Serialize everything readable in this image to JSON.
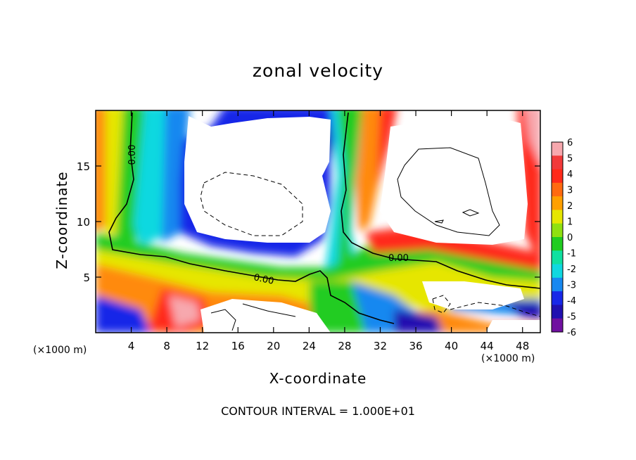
{
  "chart_data": {
    "type": "heatmap",
    "title": "zonal velocity",
    "xlabel": "X-coordinate",
    "ylabel": "Z-coordinate",
    "x_unit": "(×1000 m)",
    "footer": "CONTOUR INTERVAL = 1.000E+01",
    "xlim": [
      0,
      50
    ],
    "ylim": [
      0,
      20
    ],
    "x_ticks": [
      4,
      8,
      12,
      16,
      20,
      24,
      28,
      32,
      36,
      40,
      44,
      48
    ],
    "y_ticks": [
      5,
      10,
      15
    ],
    "colorbar": {
      "levels": [
        6,
        5,
        4,
        3,
        2,
        1,
        0,
        -1,
        -2,
        -3,
        -4,
        -5,
        -6
      ],
      "colors": [
        "#f7a8ae",
        "#f23a3a",
        "#ff2a1a",
        "#ff6a10",
        "#ffa000",
        "#e6e600",
        "#90e010",
        "#20cc20",
        "#10e0a0",
        "#10d8e0",
        "#1888f0",
        "#1828e8",
        "#2010b0",
        "#7010a0"
      ]
    },
    "contour_labels": [
      "0.00",
      "0.00",
      "0.00"
    ],
    "field_description": "values beyond colour scale shown white"
  }
}
